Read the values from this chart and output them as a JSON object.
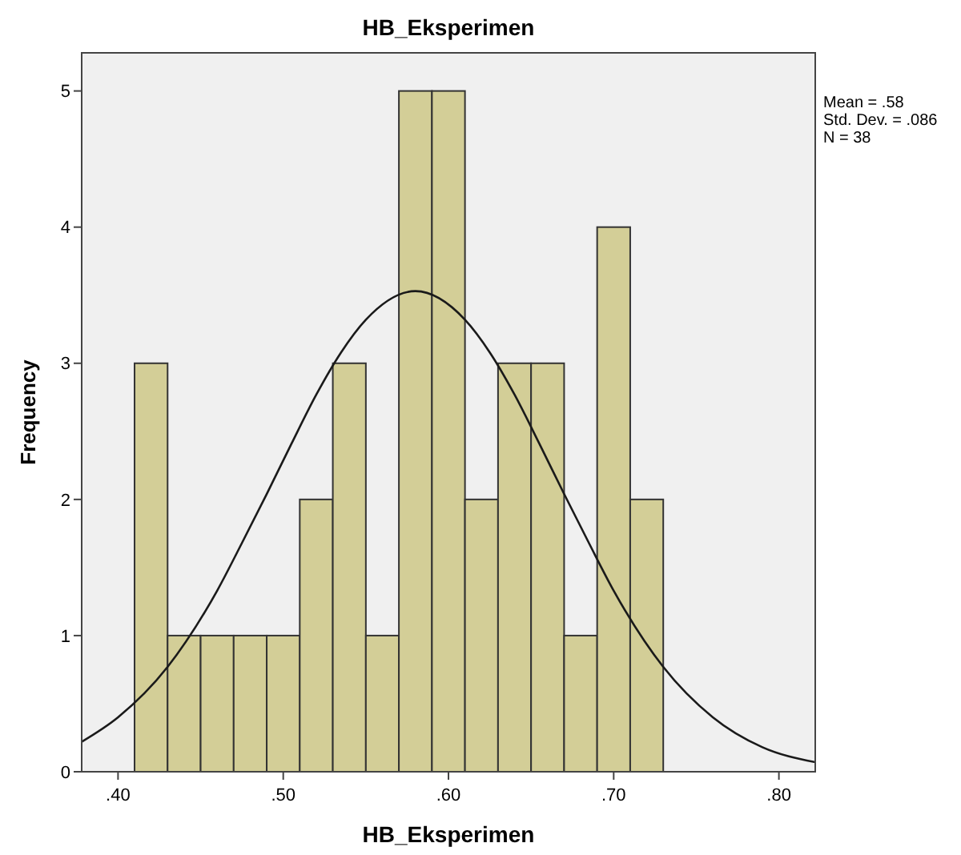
{
  "chart_data": {
    "type": "histogram",
    "title": "HB_Eksperimen",
    "xlabel": "HB_Eksperimen",
    "ylabel": "Frequency",
    "bins": [
      0.41,
      0.43,
      0.45,
      0.47,
      0.49,
      0.51,
      0.53,
      0.55,
      0.57,
      0.59,
      0.61,
      0.63,
      0.65,
      0.67,
      0.69,
      0.71,
      0.73
    ],
    "values": [
      3,
      1,
      1,
      1,
      1,
      2,
      3,
      1,
      5,
      5,
      2,
      3,
      3,
      1,
      4,
      2
    ],
    "color": "#d3ce97",
    "series": [
      {
        "type": "line",
        "color": "#1a1a1a",
        "x": [
          0.378,
          0.4,
          0.43,
          0.46,
          0.475,
          0.49,
          0.505,
          0.52,
          0.535,
          0.55,
          0.58,
          0.61,
          0.625,
          0.64,
          0.655,
          0.67,
          0.685,
          0.7,
          0.73,
          0.76,
          0.79,
          0.822
        ],
        "values": [
          0.22,
          0.4,
          0.77,
          1.33,
          1.68,
          2.04,
          2.41,
          2.77,
          3.08,
          3.32,
          3.53,
          3.32,
          3.08,
          2.77,
          2.41,
          2.04,
          1.68,
          1.33,
          0.77,
          0.4,
          0.18,
          0.07
        ]
      }
    ],
    "xlim": [
      0.378,
      0.822
    ],
    "ylim": [
      0,
      5.28
    ],
    "xticks": [
      {
        "value": 0.4,
        "label": ".40"
      },
      {
        "value": 0.5,
        "label": ".50"
      },
      {
        "value": 0.6,
        "label": ".60"
      },
      {
        "value": 0.7,
        "label": ".70"
      },
      {
        "value": 0.8,
        "label": ".80"
      }
    ],
    "yticks": [
      0,
      1,
      2,
      3,
      4,
      5
    ],
    "grid": false,
    "annotations": [
      "Mean = .58",
      "Std. Dev. = .086",
      "N = 38"
    ]
  }
}
